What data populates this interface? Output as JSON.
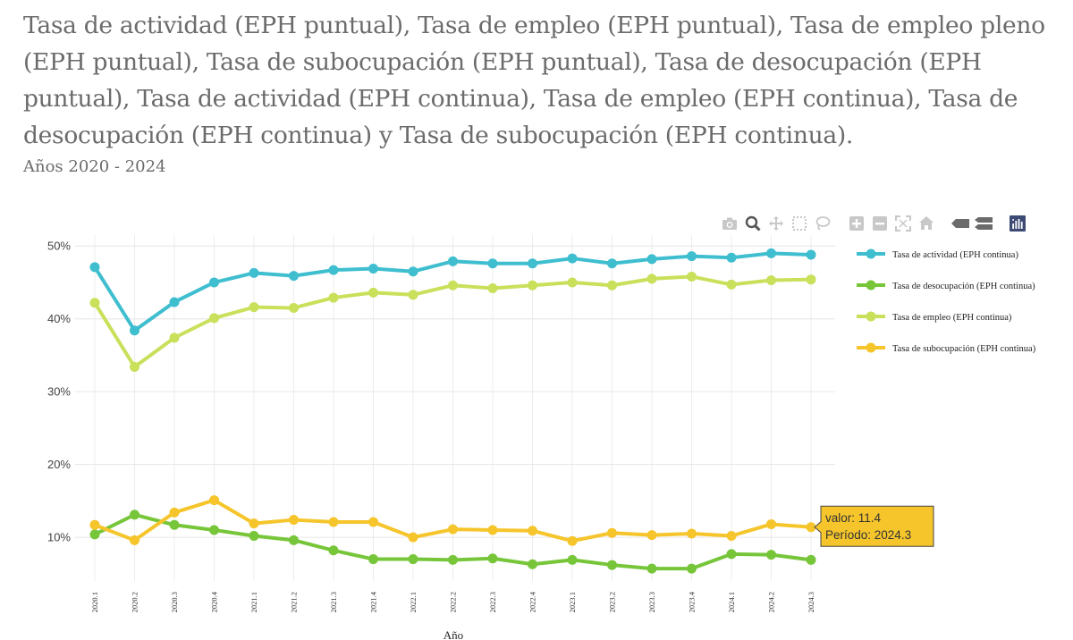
{
  "title": "Tasa de actividad (EPH puntual), Tasa de empleo (EPH puntual), Tasa de empleo pleno (EPH puntual), Tasa de subocupación (EPH puntual), Tasa de desocupación (EPH puntual), Tasa de actividad (EPH continua), Tasa de empleo (EPH continua), Tasa de desocupación (EPH continua) y Tasa de subocupación (EPH continua).",
  "subtitle": "Años 2020 - 2024",
  "modebar": [
    {
      "name": "camera-icon",
      "label": "Download plot as png"
    },
    {
      "name": "zoom-icon",
      "label": "Zoom"
    },
    {
      "name": "pan-icon",
      "label": "Pan"
    },
    {
      "name": "box-select-icon",
      "label": "Box Select"
    },
    {
      "name": "lasso-select-icon",
      "label": "Lasso Select"
    },
    {
      "name": "zoom-in-icon",
      "label": "Zoom in"
    },
    {
      "name": "zoom-out-icon",
      "label": "Zoom out"
    },
    {
      "name": "autoscale-icon",
      "label": "Autoscale"
    },
    {
      "name": "reset-axes-icon",
      "label": "Reset axes"
    },
    {
      "name": "spike-lines-icon",
      "label": "Toggle Spike Lines"
    },
    {
      "name": "compare-hover-icon",
      "label": "Compare data on hover"
    },
    {
      "name": "plotly-logo-icon",
      "label": "Produced with Plotly"
    }
  ],
  "chart_data": {
    "type": "line",
    "xlabel": "Año",
    "ylabel": "",
    "categories": [
      "2020.1",
      "2020.2",
      "2020.3",
      "2020.4",
      "2021.1",
      "2021.2",
      "2021.3",
      "2021.4",
      "2022.1",
      "2022.2",
      "2022.3",
      "2022.4",
      "2023.1",
      "2023.2",
      "2023.3",
      "2023.4",
      "2024.1",
      "2024.2",
      "2024.3"
    ],
    "ylim": [
      4,
      51.5
    ],
    "yticks": [
      10,
      20,
      30,
      40,
      50
    ],
    "ytick_labels": [
      "10%",
      "20%",
      "30%",
      "40%",
      "50%"
    ],
    "grid": true,
    "legend_position": "right",
    "series": [
      {
        "name": "Tasa de actividad (EPH continua)",
        "color": "#3fbecf",
        "values": [
          47.1,
          38.4,
          42.3,
          45.0,
          46.3,
          45.9,
          46.7,
          46.9,
          46.5,
          47.9,
          47.6,
          47.6,
          48.3,
          47.6,
          48.2,
          48.6,
          48.4,
          49.0,
          48.8
        ]
      },
      {
        "name": "Tasa de desocupación (EPH continua)",
        "color": "#77c63a",
        "values": [
          10.4,
          13.1,
          11.7,
          11.0,
          10.2,
          9.6,
          8.2,
          7.0,
          7.0,
          6.9,
          7.1,
          6.3,
          6.9,
          6.2,
          5.7,
          5.7,
          7.7,
          7.6,
          6.9
        ]
      },
      {
        "name": "Tasa de empleo (EPH continua)",
        "color": "#c8e05a",
        "values": [
          42.2,
          33.4,
          37.4,
          40.1,
          41.6,
          41.5,
          42.9,
          43.6,
          43.3,
          44.6,
          44.2,
          44.6,
          45.0,
          44.6,
          45.5,
          45.8,
          44.7,
          45.3,
          45.4
        ]
      },
      {
        "name": "Tasa de subocupación (EPH continua)",
        "color": "#f5c52b",
        "values": [
          11.7,
          9.6,
          13.4,
          15.1,
          11.9,
          12.4,
          12.1,
          12.1,
          10.0,
          11.1,
          11.0,
          10.9,
          9.5,
          10.6,
          10.3,
          10.5,
          10.2,
          11.8,
          11.4
        ]
      }
    ],
    "tooltip": {
      "valor_label": "valor: 11.4",
      "periodo_label": "Período: 2024.3",
      "bg": "#f5c52b",
      "series_index": 3,
      "point_index": 18
    }
  }
}
